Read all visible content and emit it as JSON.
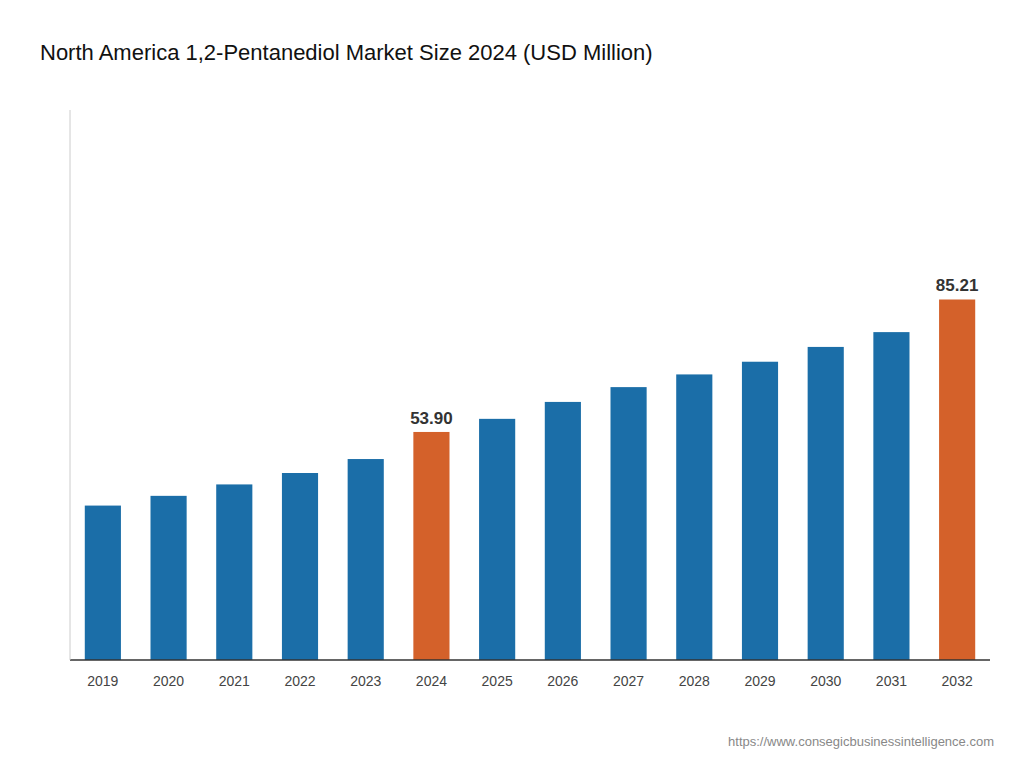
{
  "chart_data": {
    "type": "bar",
    "title": "North America 1,2-Pentanediol Market Size 2024 (USD Million)",
    "categories": [
      "2019",
      "2020",
      "2021",
      "2022",
      "2023",
      "2024",
      "2025",
      "2026",
      "2027",
      "2028",
      "2029",
      "2030",
      "2031",
      "2032"
    ],
    "values": [
      36.5,
      38.8,
      41.5,
      44.2,
      47.5,
      53.9,
      57.0,
      61.0,
      64.5,
      67.5,
      70.5,
      74.0,
      77.5,
      85.21
    ],
    "value_labels": [
      null,
      null,
      null,
      null,
      null,
      "53.90",
      null,
      null,
      null,
      null,
      null,
      null,
      null,
      "85.21"
    ],
    "colors": [
      "#1b6ea8",
      "#1b6ea8",
      "#1b6ea8",
      "#1b6ea8",
      "#1b6ea8",
      "#d4612a",
      "#1b6ea8",
      "#1b6ea8",
      "#1b6ea8",
      "#1b6ea8",
      "#1b6ea8",
      "#1b6ea8",
      "#1b6ea8",
      "#d4612a"
    ],
    "ylim": [
      0,
      130
    ],
    "tick_labels": "x",
    "grid": false,
    "annotations": [
      "https://www.consegicbusinessintelligence.com"
    ]
  }
}
